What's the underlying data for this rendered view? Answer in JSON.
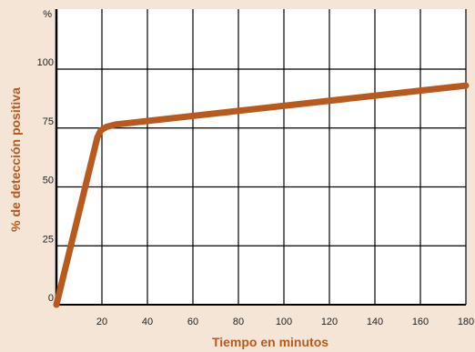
{
  "chart_data": {
    "type": "line",
    "xlabel": "Tiempo en minutos",
    "ylabel": "% de detección positiva",
    "y_unit_label": "%",
    "xlim": [
      0,
      180
    ],
    "ylim": [
      0,
      100
    ],
    "x_ticks": [
      20,
      40,
      60,
      80,
      100,
      120,
      140,
      160,
      180
    ],
    "y_ticks": [
      0,
      25,
      50,
      75,
      100
    ],
    "grid": true,
    "colors": {
      "background": "#f4e5d7",
      "plot": "#ffffff",
      "grid": "#000000",
      "line": "#b85a1e",
      "label": "#b85a1e"
    },
    "series": [
      {
        "x": [
          0,
          18,
          19.5,
          22,
          26,
          180
        ],
        "y": [
          0,
          71,
          74,
          75.5,
          76.5,
          93
        ]
      }
    ]
  }
}
